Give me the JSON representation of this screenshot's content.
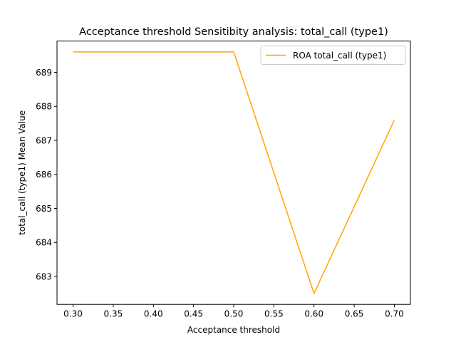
{
  "chart_data": {
    "type": "line",
    "title": "Acceptance threshold Sensitibity analysis: total_call (type1)",
    "xlabel": "Acceptance threshold",
    "ylabel": "total_call (type1) Mean Value",
    "x": [
      0.3,
      0.4,
      0.5,
      0.6,
      0.7
    ],
    "xlim": [
      0.28,
      0.72
    ],
    "ylim": [
      682.18,
      689.92
    ],
    "xticks": [
      "0.30",
      "0.35",
      "0.40",
      "0.45",
      "0.50",
      "0.55",
      "0.60",
      "0.65",
      "0.70"
    ],
    "yticks": [
      "683",
      "684",
      "685",
      "686",
      "687",
      "688",
      "689"
    ],
    "series": [
      {
        "name": "ROA total_call (type1)",
        "values": [
          689.6,
          689.6,
          689.6,
          682.5,
          687.6
        ],
        "color": "#FFA500"
      }
    ],
    "grid": false,
    "legend": "top-right"
  }
}
